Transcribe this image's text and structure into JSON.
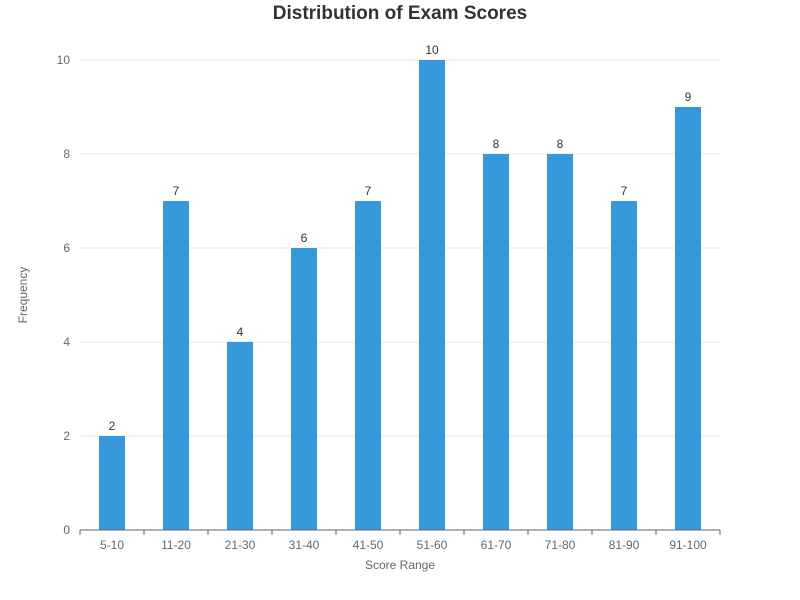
{
  "chart_data": {
    "type": "bar",
    "title": "Distribution of Exam Scores",
    "xlabel": "Score Range",
    "ylabel": "Frequency",
    "categories": [
      "5-10",
      "11-20",
      "21-30",
      "31-40",
      "41-50",
      "51-60",
      "61-70",
      "71-80",
      "81-90",
      "91-100"
    ],
    "values": [
      2,
      7,
      4,
      6,
      7,
      10,
      8,
      8,
      7,
      9
    ],
    "ylim": [
      0,
      10
    ],
    "yticks": [
      0,
      2,
      4,
      6,
      8,
      10
    ],
    "grid": true,
    "legend": "none",
    "bar_color": "#3498db",
    "data_labels": true
  }
}
